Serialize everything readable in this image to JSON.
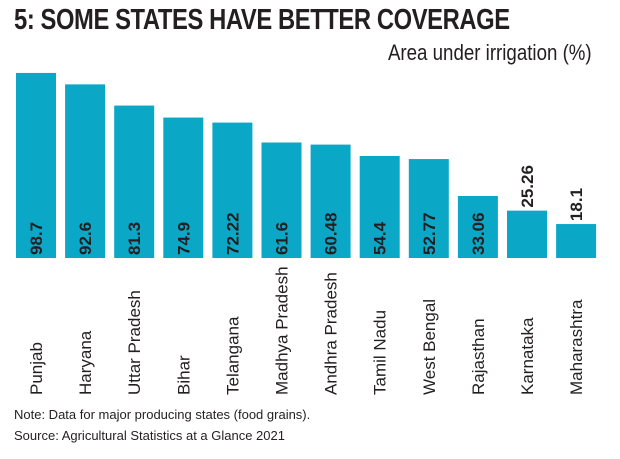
{
  "chart_data": {
    "type": "bar",
    "title": "5: SOME STATES HAVE BETTER COVERAGE",
    "ylabel": "Area under irrigation (%)",
    "xlabel": "",
    "categories": [
      "Punjab",
      "Haryana",
      "Uttar Pradesh",
      "Bihar",
      "Telangana",
      "Madhya Pradesh",
      "Andhra Pradesh",
      "Tamil Nadu",
      "West Bengal",
      "Rajasthan",
      "Karnataka",
      "Maharashtra"
    ],
    "values": [
      98.7,
      92.6,
      81.3,
      74.9,
      72.22,
      61.6,
      60.48,
      54.4,
      52.77,
      33.06,
      25.26,
      18.1
    ],
    "value_labels": [
      "98.7",
      "92.6",
      "81.3",
      "74.9",
      "72.22",
      "61.6",
      "60.48",
      "54.4",
      "52.77",
      "33.06",
      "25.26",
      "18.1"
    ],
    "ylim": [
      0,
      100
    ],
    "grid": false,
    "bar_color": "#0aa7c7",
    "label_color": "#231f20"
  },
  "notes": {
    "note": "Note: Data for major producing states (food grains).",
    "source": "Source: Agricultural Statistics at a Glance 2021"
  }
}
